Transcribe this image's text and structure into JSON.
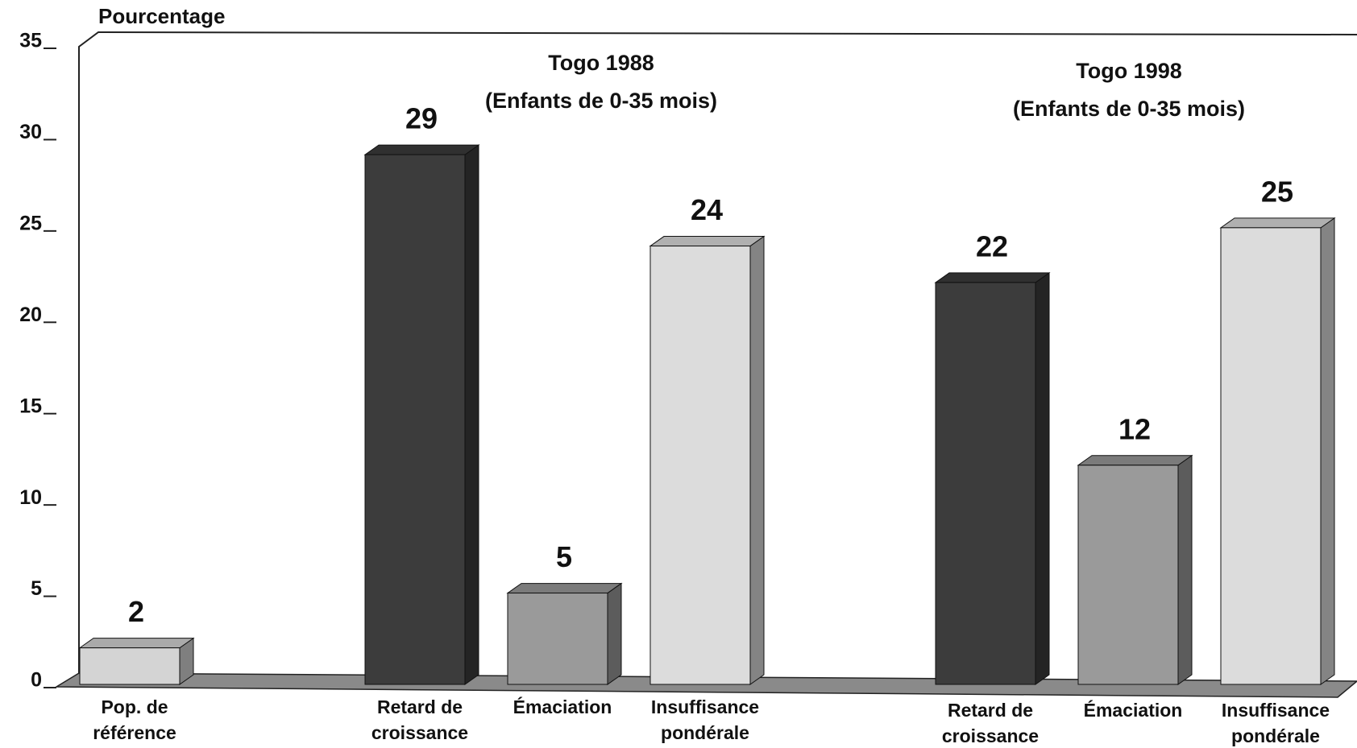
{
  "chart_data": {
    "type": "bar",
    "y_label": "Pourcentage",
    "annotations": [
      "Togo 1988",
      "(Enfants de 0-35 mois)",
      "Togo 1998",
      "(Enfants de 0-35 mois)"
    ],
    "categories": [
      "Pop. de référence",
      null,
      "Retard de croissance",
      "Émaciation",
      "Insuffisance pondérale",
      null,
      "Retard de croissance",
      "Émaciation",
      "Insuffisance pondérale"
    ],
    "values": [
      2,
      null,
      29,
      5,
      24,
      null,
      22,
      12,
      25
    ],
    "colors": [
      "#d4d4d4",
      null,
      "#3c3c3c",
      "#9a9a9a",
      "#dcdcdc",
      null,
      "#3c3c3c",
      "#9a9a9a",
      "#dcdcdc"
    ],
    "ylim": [
      0,
      35
    ],
    "yticks": [
      0,
      5,
      10,
      15,
      20,
      25,
      30,
      35
    ],
    "grid": false
  }
}
